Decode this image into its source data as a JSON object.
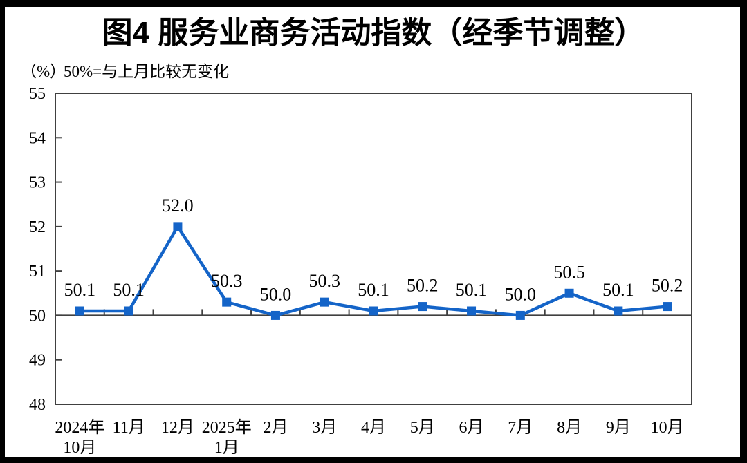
{
  "title": "图4 服务业商务活动指数（经季节调整）",
  "subtitle": {
    "unit_label": "（%）",
    "note": "50%=与上月比较无变化"
  },
  "colors": {
    "line": "#1464C8",
    "marker": "#1464C8",
    "axis": "#404040",
    "frame": "#000000",
    "background": "#FFFFFF",
    "text": "#000000"
  },
  "chart_data": {
    "type": "line",
    "title": "图4 服务业商务活动指数（经季节调整）",
    "ylabel": "（%）",
    "annotation": "50%=与上月比较无变化",
    "categories": [
      [
        "2024年",
        "10月"
      ],
      [
        "11月"
      ],
      [
        "12月"
      ],
      [
        "2025年",
        "1月"
      ],
      [
        "2月"
      ],
      [
        "3月"
      ],
      [
        "4月"
      ],
      [
        "5月"
      ],
      [
        "6月"
      ],
      [
        "7月"
      ],
      [
        "8月"
      ],
      [
        "9月"
      ],
      [
        "10月"
      ]
    ],
    "values": [
      50.1,
      50.1,
      52.0,
      50.3,
      50.0,
      50.3,
      50.1,
      50.2,
      50.1,
      50.0,
      50.5,
      50.1,
      50.2
    ],
    "data_labels": [
      "50.1",
      "50.1",
      "52.0",
      "50.3",
      "50.0",
      "50.3",
      "50.1",
      "50.2",
      "50.1",
      "50.0",
      "50.5",
      "50.1",
      "50.2"
    ],
    "ylim": [
      48,
      55
    ],
    "ytick_step": 1,
    "yticks": [
      48,
      49,
      50,
      51,
      52,
      53,
      54,
      55
    ],
    "reference_line": 50,
    "grid": false,
    "legend": false,
    "marker": "square",
    "series_name": "服务业商务活动指数"
  }
}
